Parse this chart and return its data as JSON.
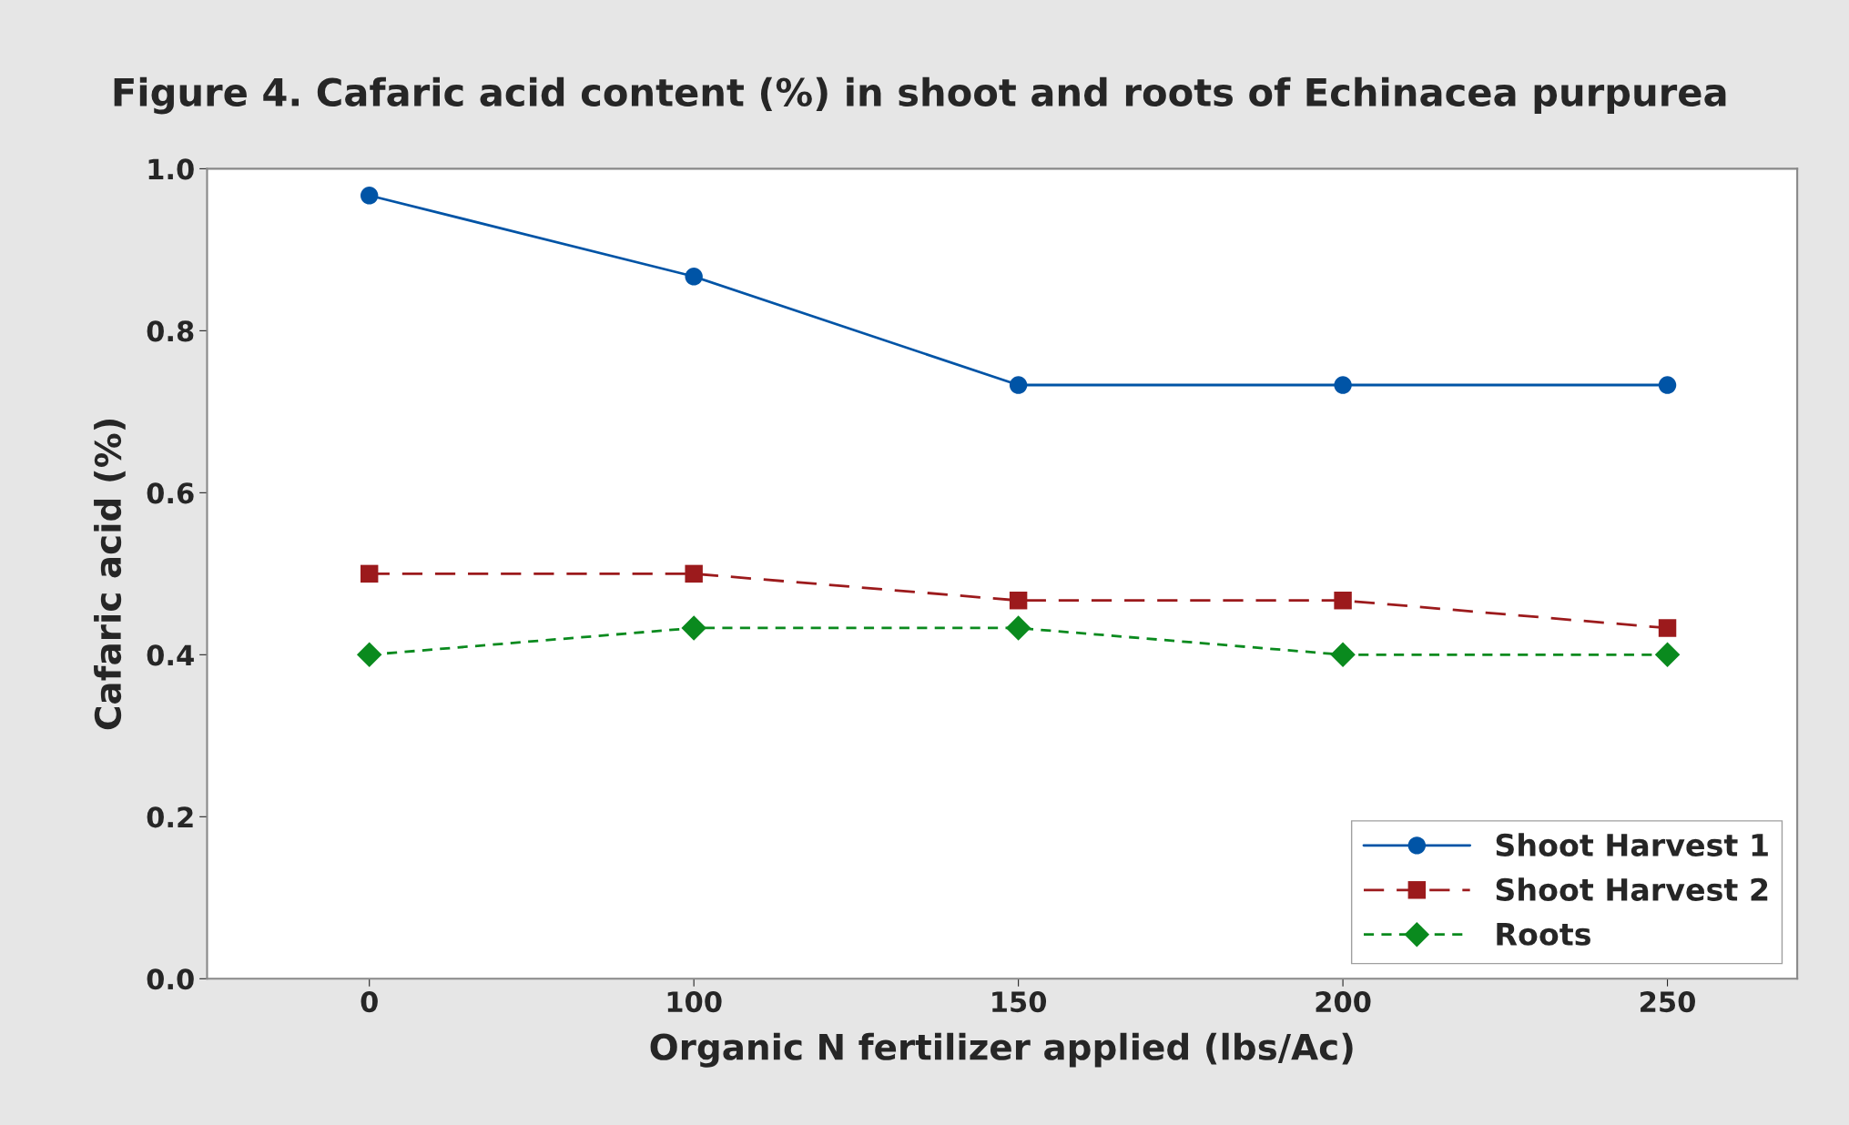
{
  "chart_data": {
    "type": "line",
    "title": "Figure 4. Cafaric acid content (%) in shoot and roots of Echinacea purpurea",
    "xlabel": "Organic N fertilizer applied (lbs/Ac)",
    "ylabel": "Cafaric acid (%)",
    "categories": [
      "0",
      "100",
      "150",
      "200",
      "250"
    ],
    "series": [
      {
        "name": "Shoot Harvest 1",
        "color": "#0054a6",
        "marker": "circle",
        "line_style": "solid",
        "values": [
          0.967,
          0.867,
          0.733,
          0.733,
          0.733
        ]
      },
      {
        "name": "Shoot Harvest 2",
        "color": "#9c1a1c",
        "marker": "square",
        "line_style": "dashed",
        "values": [
          0.5,
          0.5,
          0.467,
          0.467,
          0.433
        ]
      },
      {
        "name": "Roots",
        "color": "#0a8a1e",
        "marker": "diamond",
        "line_style": "dotted",
        "values": [
          0.4,
          0.433,
          0.433,
          0.4,
          0.4
        ]
      }
    ],
    "ylim": [
      0,
      1.0
    ],
    "yticks": [
      {
        "value": 0,
        "label": "0.0"
      },
      0.2,
      0.4,
      0.6,
      0.8,
      {
        "value": 1.0,
        "label": "1.0"
      }
    ],
    "grid": false,
    "legend": "bottom right"
  }
}
